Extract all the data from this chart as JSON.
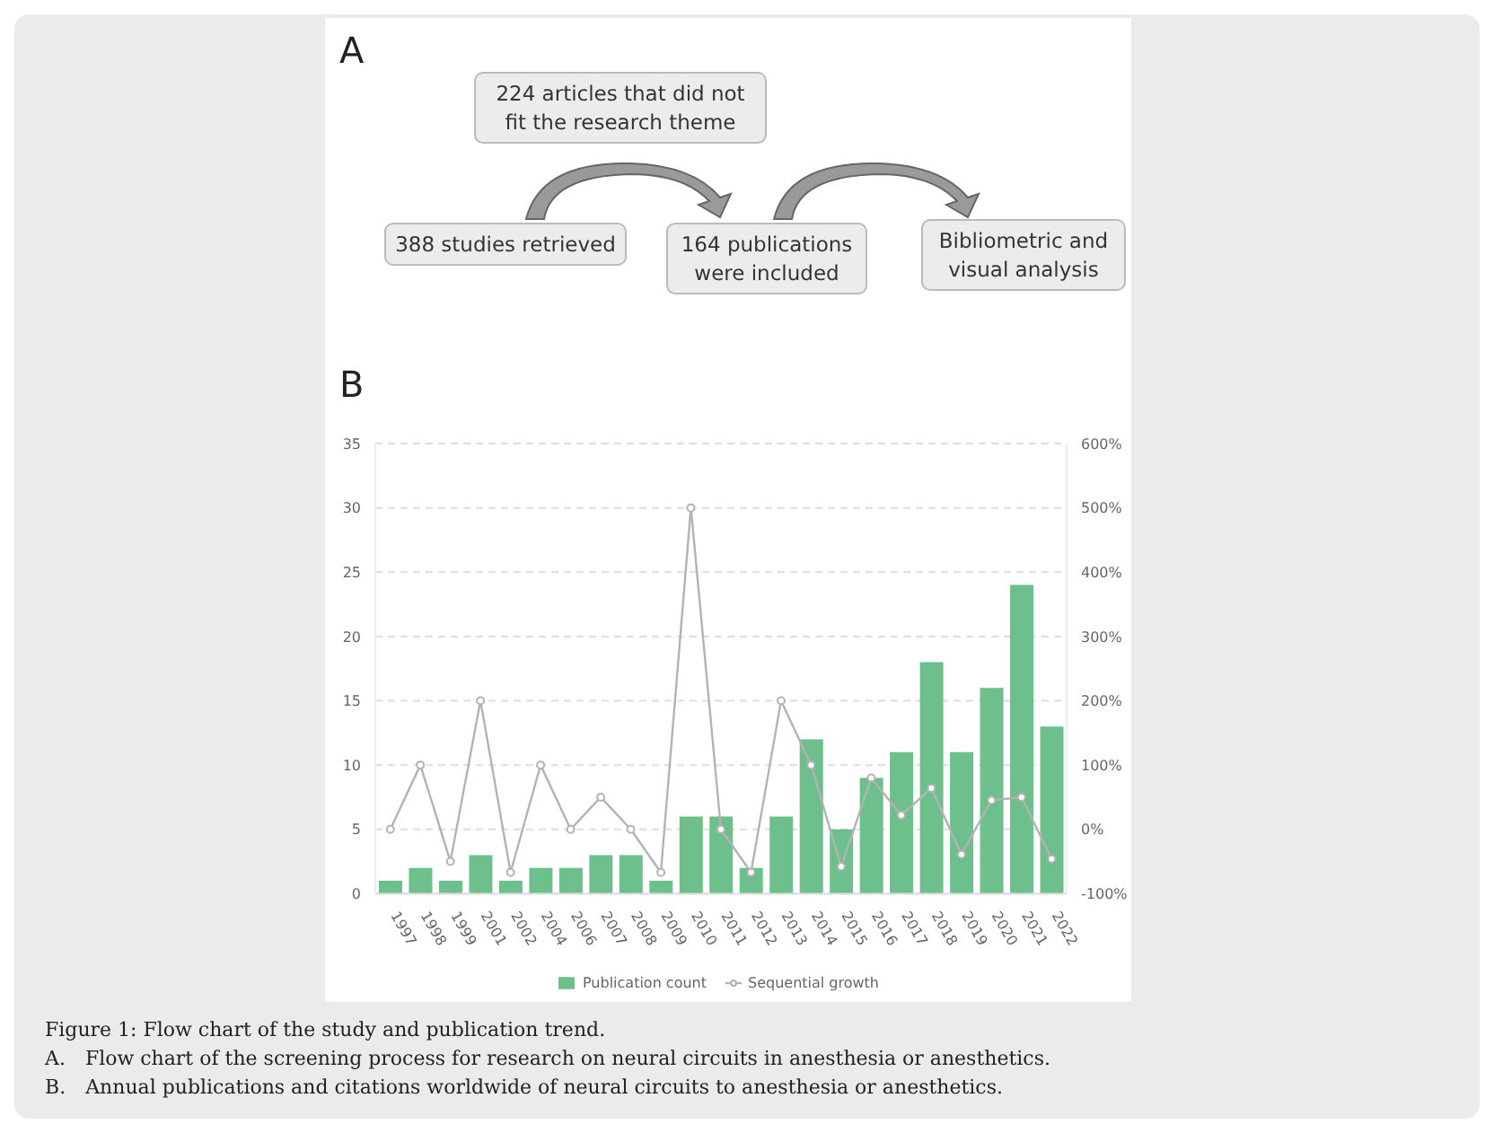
{
  "chart_data": [
    {
      "type": "other",
      "title": "A",
      "annotations": [
        "224 articles that did not fit the research theme",
        "388 studies retrieved",
        "164 publications were included",
        "Bibliometric and visual analysis"
      ]
    },
    {
      "type": "bar",
      "title": "B",
      "categories": [
        "1997",
        "1998",
        "1999",
        "2001",
        "2002",
        "2004",
        "2006",
        "2007",
        "2008",
        "2009",
        "2010",
        "2011",
        "2012",
        "2013",
        "2014",
        "2015",
        "2016",
        "2017",
        "2018",
        "2019",
        "2020",
        "2021",
        "2022"
      ],
      "series": [
        {
          "name": "Publication count",
          "color": "#6dbf8b",
          "values": [
            1,
            2,
            1,
            3,
            1,
            2,
            2,
            3,
            3,
            1,
            6,
            6,
            2,
            6,
            12,
            5,
            9,
            11,
            18,
            11,
            16,
            24,
            13
          ]
        },
        {
          "name": "Sequential growth",
          "type": "line",
          "axis": "y2",
          "color": "#b3b3b3",
          "values": [
            0,
            100,
            -50,
            200,
            -67,
            100,
            0,
            50,
            0,
            -67,
            500,
            0,
            -67,
            200,
            100,
            -58,
            80,
            22,
            64,
            -39,
            45,
            50,
            -46
          ]
        }
      ],
      "ylim": [
        0,
        35
      ],
      "yticks": [
        0,
        5,
        10,
        15,
        20,
        25,
        30,
        35
      ],
      "y2lim": [
        -100,
        600
      ],
      "y2ticks": [
        {
          "value": -100,
          "label": "-100%"
        },
        {
          "value": 0,
          "label": "0%"
        },
        {
          "value": 100,
          "label": "100%"
        },
        {
          "value": 200,
          "label": "200%"
        },
        {
          "value": 300,
          "label": "300%"
        },
        {
          "value": 400,
          "label": "400%"
        },
        {
          "value": 500,
          "label": "500%"
        },
        {
          "value": 600,
          "label": "600%"
        }
      ],
      "grid": "y",
      "legend": "bottom",
      "marker": "circle",
      "line_style": "solid",
      "annotations": [
        "Figure 1: Flow chart of the study and publication trend.",
        "A. Flow chart of the screening process for research on neural circuits in anesthesia or anesthetics.",
        "B. Annual publications and citations worldwide of neural circuits to anesthesia or anesthetics."
      ]
    }
  ]
}
